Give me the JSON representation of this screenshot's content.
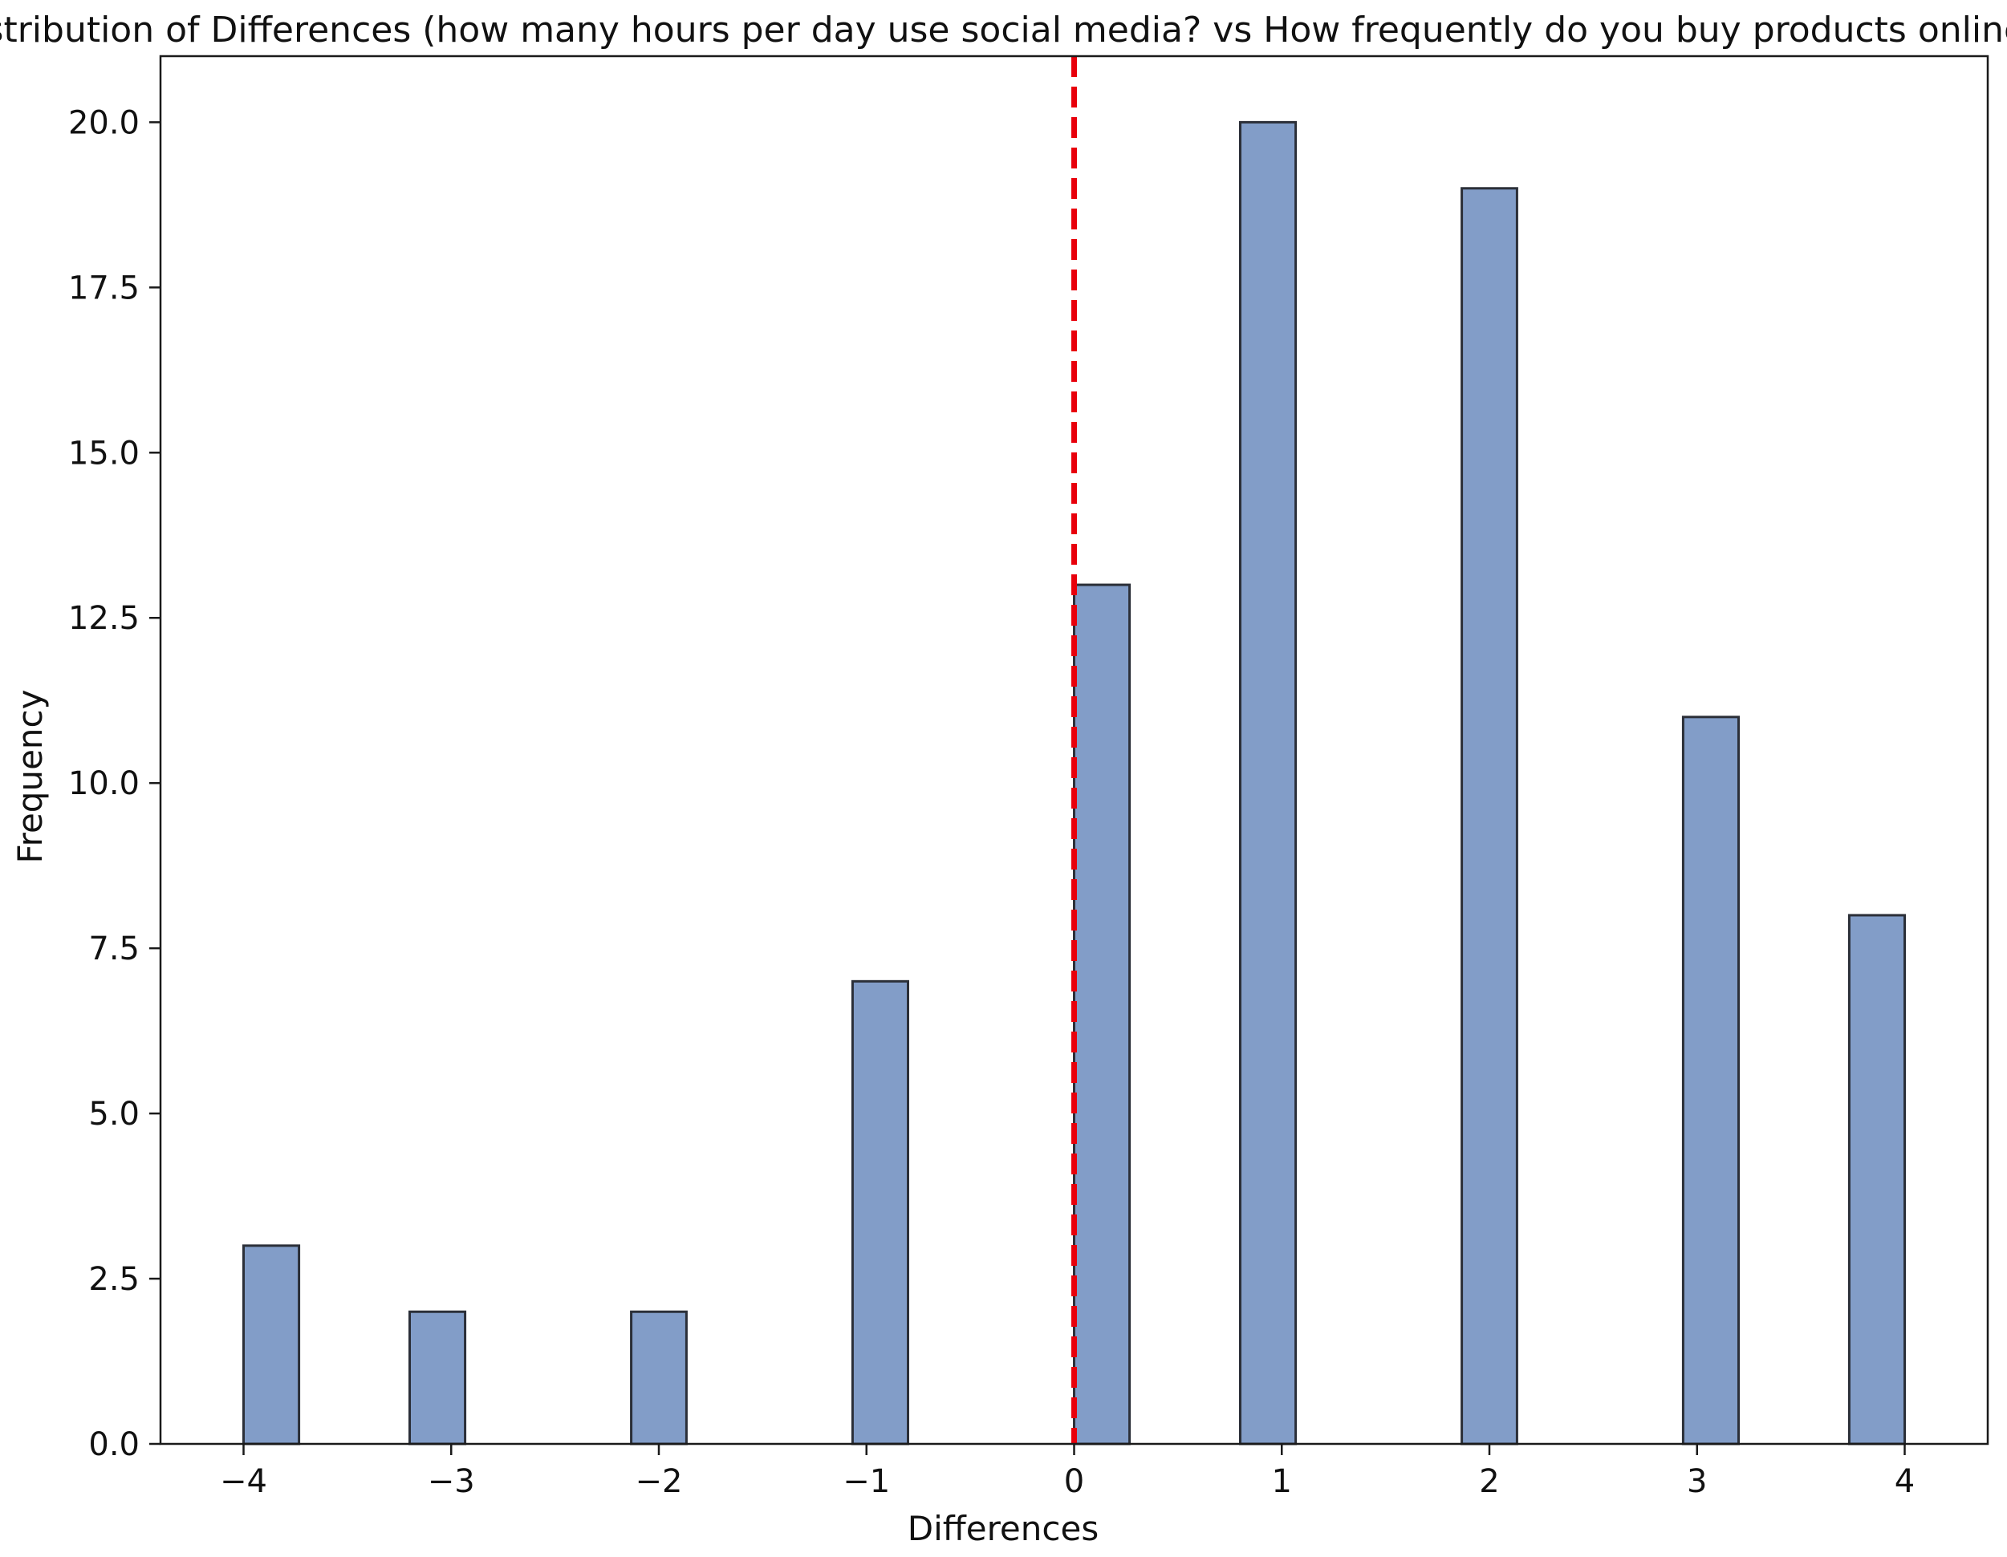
{
  "chart_data": {
    "type": "bar",
    "title": "Distribution of Differences (how many hours per day use social media? vs How frequently do you buy products online?)",
    "xlabel": "Differences",
    "ylabel": "Frequency",
    "xlim": [
      -4.4,
      4.4
    ],
    "ylim": [
      0,
      21
    ],
    "x_ticks": [
      -4,
      -3,
      -2,
      -1,
      0,
      1,
      2,
      3,
      4
    ],
    "x_tick_labels": [
      "−4",
      "−3",
      "−2",
      "−1",
      "0",
      "1",
      "2",
      "3",
      "4"
    ],
    "y_ticks": [
      0,
      2.5,
      5,
      7.5,
      10,
      12.5,
      15,
      17.5,
      20
    ],
    "y_tick_labels": [
      "0.0",
      "2.5",
      "5.0",
      "7.5",
      "10.0",
      "12.5",
      "15.0",
      "17.5",
      "20.0"
    ],
    "bins": [
      {
        "start": -4.0,
        "end": -3.733,
        "count": 3
      },
      {
        "start": -3.2,
        "end": -2.933,
        "count": 2
      },
      {
        "start": -2.133,
        "end": -1.867,
        "count": 2
      },
      {
        "start": -1.067,
        "end": -0.8,
        "count": 7
      },
      {
        "start": 0.0,
        "end": 0.267,
        "count": 13
      },
      {
        "start": 0.8,
        "end": 1.067,
        "count": 20
      },
      {
        "start": 1.867,
        "end": 2.133,
        "count": 19
      },
      {
        "start": 2.933,
        "end": 3.2,
        "count": 11
      },
      {
        "start": 3.733,
        "end": 4.0,
        "count": 8
      }
    ],
    "reference_line": {
      "x": 0,
      "style": "dashed",
      "color": "#e8000b"
    },
    "bar_color": "#829dc8",
    "bar_edge_color": "#2b2f38",
    "grid": false
  }
}
